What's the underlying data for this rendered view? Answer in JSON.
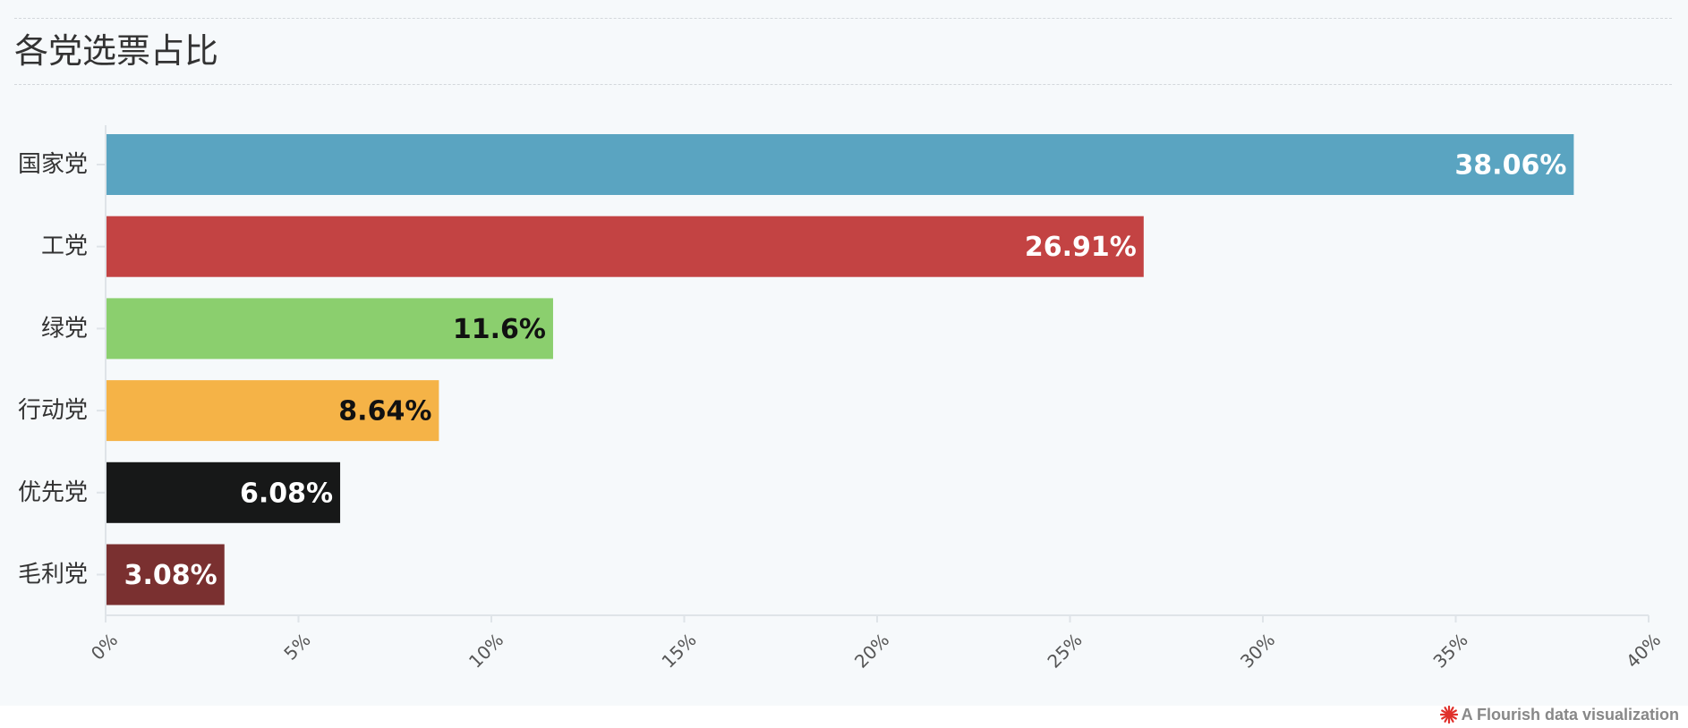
{
  "page": {
    "title": "各党选票占比",
    "credit": "A Flourish data visualization"
  },
  "colors": {
    "background": "#f6f9fb",
    "axis": "#dfe4e8",
    "tick_label": "#555555",
    "category_label": "#333333",
    "credit_icon": "#e0302b"
  },
  "chart_data": {
    "type": "bar",
    "orientation": "horizontal",
    "title": "各党选票占比",
    "xlabel": "",
    "ylabel": "",
    "xlim": [
      0,
      40
    ],
    "xticks": [
      0,
      5,
      10,
      15,
      20,
      25,
      30,
      35,
      40
    ],
    "xtick_suffix": "%",
    "grid": false,
    "legend": "none",
    "categories": [
      "国家党",
      "工党",
      "绿党",
      "行动党",
      "优先党",
      "毛利党"
    ],
    "values": [
      38.06,
      26.91,
      11.6,
      8.64,
      6.08,
      3.08
    ],
    "data_labels": [
      "38.06%",
      "26.91%",
      "11.6%",
      "8.64%",
      "6.08%",
      "3.08%"
    ],
    "colors": [
      "#5aa4c1",
      "#c34343",
      "#8bcf6e",
      "#f5b347",
      "#171818",
      "#7a3030"
    ],
    "label_colors": [
      "#ffffff",
      "#ffffff",
      "#111111",
      "#111111",
      "#ffffff",
      "#ffffff"
    ]
  }
}
